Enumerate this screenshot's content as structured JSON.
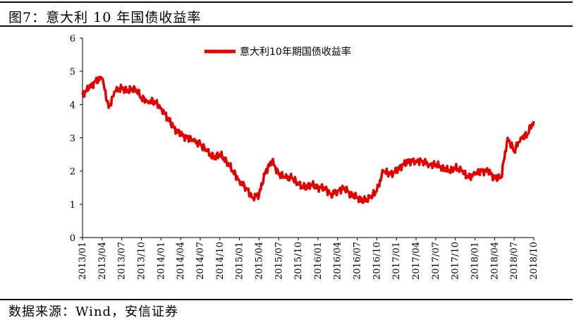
{
  "figure_title": "图7：意大利 10 年国债收益率",
  "source_note": "数据来源：Wind，安信证券",
  "chart_data": {
    "type": "line",
    "title": "",
    "xlabel": "",
    "ylabel": "",
    "ylim": [
      0,
      6
    ],
    "yticks": [
      "0",
      "1",
      "2",
      "3",
      "4",
      "5",
      "6"
    ],
    "xticks": [
      "2013/01",
      "2013/04",
      "2013/07",
      "2013/10",
      "2014/01",
      "2014/04",
      "2014/07",
      "2014/10",
      "2015/01",
      "2015/04",
      "2015/07",
      "2015/10",
      "2016/01",
      "2016/04",
      "2016/07",
      "2016/10",
      "2017/01",
      "2017/04",
      "2017/07",
      "2017/10",
      "2018/01",
      "2018/04",
      "2018/07",
      "2018/10"
    ],
    "grid": false,
    "legend": "top-center",
    "series": [
      {
        "name": "意大利10年期国债收益率",
        "color": "#e00000",
        "x": [
          "2013/01",
          "2013/02",
          "2013/03",
          "2013/04",
          "2013/05",
          "2013/06",
          "2013/07",
          "2013/08",
          "2013/09",
          "2013/10",
          "2013/11",
          "2013/12",
          "2014/01",
          "2014/02",
          "2014/03",
          "2014/04",
          "2014/05",
          "2014/06",
          "2014/07",
          "2014/08",
          "2014/09",
          "2014/10",
          "2014/11",
          "2014/12",
          "2015/01",
          "2015/02",
          "2015/03",
          "2015/04",
          "2015/05",
          "2015/06",
          "2015/07",
          "2015/08",
          "2015/09",
          "2015/10",
          "2015/11",
          "2015/12",
          "2016/01",
          "2016/02",
          "2016/03",
          "2016/04",
          "2016/05",
          "2016/06",
          "2016/07",
          "2016/08",
          "2016/09",
          "2016/10",
          "2016/11",
          "2016/12",
          "2017/01",
          "2017/02",
          "2017/03",
          "2017/04",
          "2017/05",
          "2017/06",
          "2017/07",
          "2017/08",
          "2017/09",
          "2017/10",
          "2017/11",
          "2017/12",
          "2018/01",
          "2018/02",
          "2018/03",
          "2018/04",
          "2018/05",
          "2018/06",
          "2018/07",
          "2018/08",
          "2018/09",
          "2018/10"
        ],
        "values": [
          4.3,
          4.5,
          4.7,
          4.8,
          3.9,
          4.4,
          4.5,
          4.4,
          4.5,
          4.2,
          4.1,
          4.1,
          3.9,
          3.6,
          3.3,
          3.1,
          3.0,
          2.9,
          2.8,
          2.6,
          2.4,
          2.5,
          2.3,
          2.0,
          1.7,
          1.5,
          1.2,
          1.3,
          2.0,
          2.3,
          1.9,
          1.8,
          1.8,
          1.6,
          1.5,
          1.6,
          1.5,
          1.5,
          1.3,
          1.4,
          1.5,
          1.3,
          1.2,
          1.1,
          1.2,
          1.4,
          2.0,
          1.9,
          2.0,
          2.2,
          2.3,
          2.3,
          2.3,
          2.2,
          2.2,
          2.1,
          2.0,
          2.1,
          2.0,
          1.8,
          1.9,
          2.0,
          2.0,
          1.8,
          1.8,
          3.0,
          2.6,
          3.0,
          3.1,
          3.5
        ]
      }
    ]
  }
}
